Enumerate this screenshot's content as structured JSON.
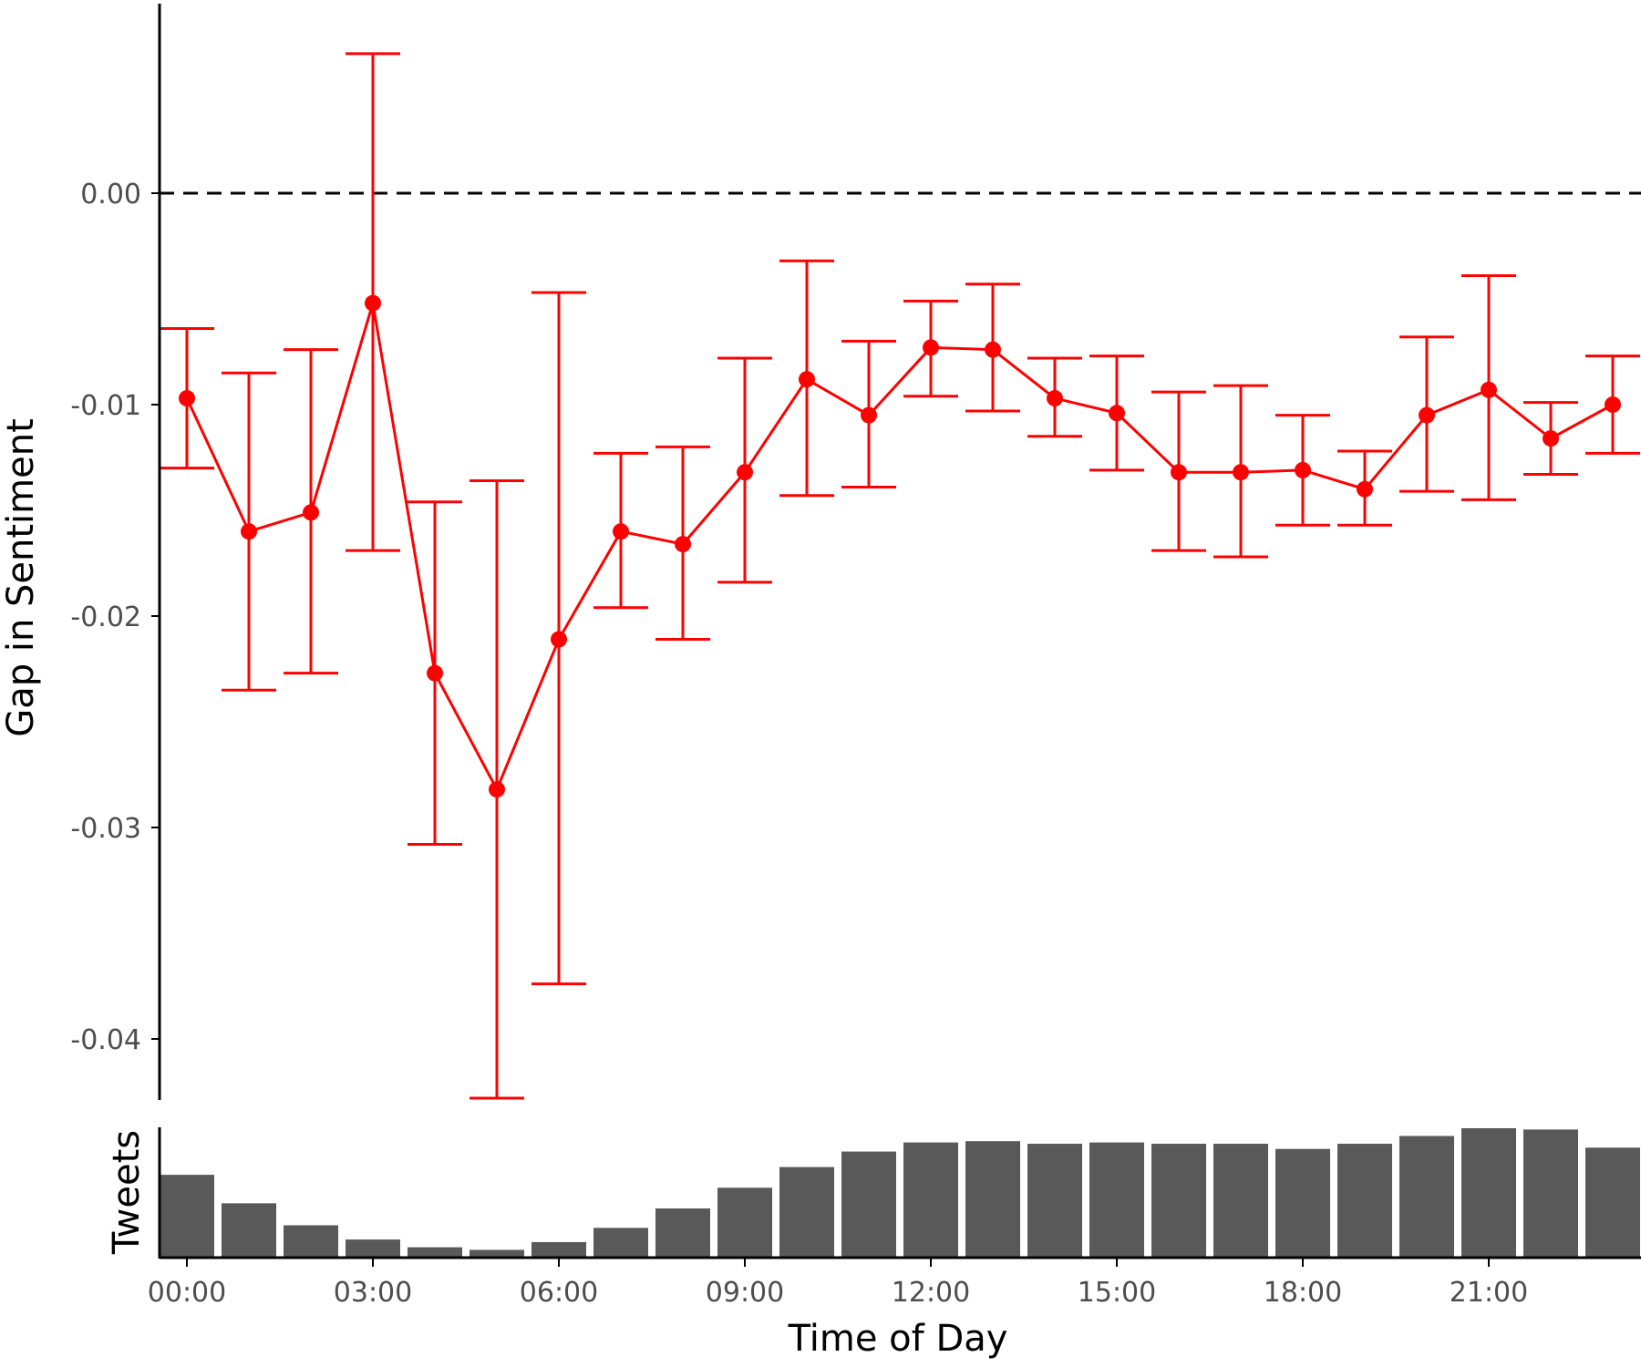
{
  "chart_data": [
    {
      "type": "line",
      "panel": "top",
      "ylabel": "Gap in Sentiment",
      "ylim": [
        -0.043,
        0.009
      ],
      "yticks": [
        0.0,
        -0.01,
        -0.02,
        -0.03,
        -0.04
      ],
      "ytick_labels": [
        "0.00",
        "-0.01",
        "-0.02",
        "-0.03",
        "-0.04"
      ],
      "reference_line": {
        "y": 0.0,
        "style": "dashed",
        "color": "#000000"
      },
      "series": [
        {
          "color": "#ff0000",
          "x": [
            0,
            1,
            2,
            3,
            4,
            5,
            6,
            7,
            8,
            9,
            10,
            11,
            12,
            13,
            14,
            15,
            16,
            17,
            18,
            19,
            20,
            21,
            22,
            23
          ],
          "y": [
            -0.0097,
            -0.016,
            -0.0151,
            -0.0052,
            -0.0227,
            -0.0282,
            -0.0211,
            -0.016,
            -0.0166,
            -0.0132,
            -0.0088,
            -0.0105,
            -0.0073,
            -0.0074,
            -0.0097,
            -0.0104,
            -0.0132,
            -0.0132,
            -0.0131,
            -0.014,
            -0.0105,
            -0.0093,
            -0.0116,
            -0.01
          ],
          "ci_low": [
            -0.013,
            -0.0235,
            -0.0227,
            -0.0169,
            -0.0308,
            -0.0428,
            -0.0374,
            -0.0196,
            -0.0211,
            -0.0184,
            -0.0143,
            -0.0139,
            -0.0096,
            -0.0103,
            -0.0115,
            -0.0131,
            -0.0169,
            -0.0172,
            -0.0157,
            -0.0157,
            -0.0141,
            -0.0145,
            -0.0133,
            -0.0123
          ],
          "ci_high": [
            -0.0064,
            -0.0085,
            -0.0074,
            0.0066,
            -0.0146,
            -0.0136,
            -0.0047,
            -0.0123,
            -0.012,
            -0.0078,
            -0.0032,
            -0.007,
            -0.0051,
            -0.0043,
            -0.0078,
            -0.0077,
            -0.0094,
            -0.0091,
            -0.0105,
            -0.0122,
            -0.0068,
            -0.0039,
            -0.0099,
            -0.0077
          ]
        }
      ]
    },
    {
      "type": "bar",
      "panel": "bottom",
      "xlabel": "Time of Day",
      "ylabel": "Tweets",
      "bar_color": "#595959",
      "x": [
        0,
        1,
        2,
        3,
        4,
        5,
        6,
        7,
        8,
        9,
        10,
        11,
        12,
        13,
        14,
        15,
        16,
        17,
        18,
        19,
        20,
        21,
        22,
        23
      ],
      "values": [
        0.64,
        0.42,
        0.25,
        0.14,
        0.08,
        0.06,
        0.12,
        0.23,
        0.38,
        0.54,
        0.7,
        0.82,
        0.89,
        0.9,
        0.88,
        0.89,
        0.88,
        0.88,
        0.84,
        0.88,
        0.94,
        1.0,
        0.99,
        0.85
      ],
      "xticks": [
        0,
        3,
        6,
        9,
        12,
        15,
        18,
        21
      ],
      "xtick_labels": [
        "00:00",
        "03:00",
        "06:00",
        "09:00",
        "12:00",
        "15:00",
        "18:00",
        "21:00"
      ]
    }
  ]
}
